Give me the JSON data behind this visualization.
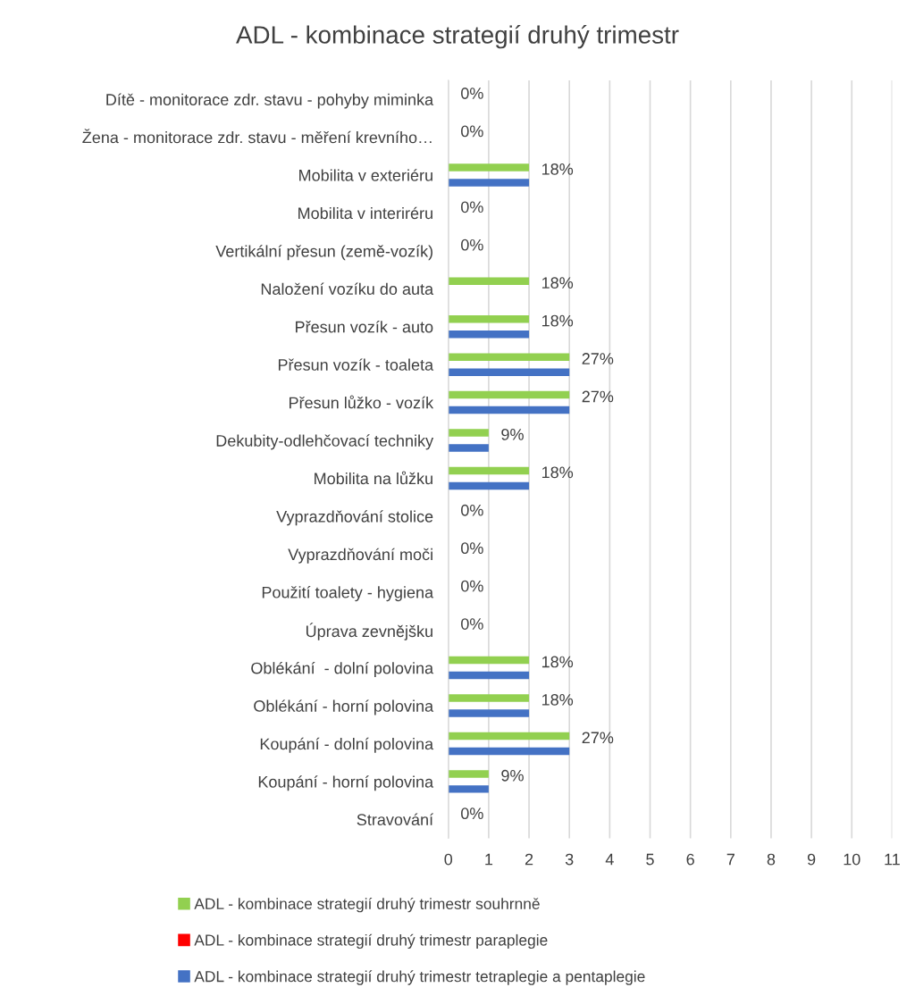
{
  "chart_data": {
    "type": "bar",
    "orientation": "horizontal",
    "title": "ADL - kombinace strategií druhý trimestr",
    "categories": [
      "Dítě - monitorace zdr. stavu - pohyby miminka",
      "Žena - monitorace zdr. stavu - měření krevního…",
      "Mobilita v exteriéru",
      "Mobilita v interiréru",
      "Vertikální přesun (země-vozík)",
      "Naložení vozíku do auta",
      "Přesun vozík - auto",
      "Přesun vozík - toaleta",
      "Přesun lůžko - vozík",
      "Dekubity-odlehčovací techniky",
      "Mobilita na lůžku",
      "Vyprazdňování stolice",
      "Vyprazdňování moči",
      "Použití toalety - hygiena",
      "Úprava zevnějšku",
      "Oblékání  - dolní polovina",
      "Oblékání - horní polovina",
      "Koupání - dolní polovina",
      "Koupání - horní polovina",
      "Stravování"
    ],
    "series": [
      {
        "name": "ADL - kombinace strategií druhý trimestr souhrnně",
        "color": "#92d050",
        "values": [
          0,
          0,
          2,
          0,
          0,
          2,
          2,
          3,
          3,
          1,
          2,
          0,
          0,
          0,
          0,
          2,
          2,
          3,
          1,
          0
        ]
      },
      {
        "name": "ADL - kombinace strategií druhý trimestr paraplegie",
        "color": "#ff0000",
        "values": [
          0,
          0,
          0,
          0,
          0,
          0,
          0,
          0,
          0,
          0,
          0,
          0,
          0,
          0,
          0,
          0,
          0,
          0,
          0,
          0
        ]
      },
      {
        "name": "ADL - kombinace strategií druhý trimestr tetraplegie a pentaplegie",
        "color": "#4472c4",
        "values": [
          0,
          0,
          2,
          0,
          0,
          0,
          2,
          3,
          3,
          1,
          2,
          0,
          0,
          0,
          0,
          2,
          2,
          3,
          1,
          0
        ]
      }
    ],
    "annotations": [
      {
        "text": "0%",
        "x": 0,
        "y": "Dítě - monitorace zdr. stavu - pohyby miminka"
      },
      {
        "text": "0%",
        "x": 0,
        "y": "Žena - monitorace zdr. stavu - měření krevního…"
      },
      {
        "text": "18%",
        "x": 2,
        "y": "Mobilita v exteriéru"
      },
      {
        "text": "0%",
        "x": 0,
        "y": "Mobilita v interiréru"
      },
      {
        "text": "0%",
        "x": 0,
        "y": "Vertikální přesun (země-vozík)"
      },
      {
        "text": "18%",
        "x": 2,
        "y": "Naložení vozíku do auta"
      },
      {
        "text": "18%",
        "x": 2,
        "y": "Přesun vozík - auto"
      },
      {
        "text": "27%",
        "x": 3,
        "y": "Přesun vozík - toaleta"
      },
      {
        "text": "27%",
        "x": 3,
        "y": "Přesun lůžko - vozík"
      },
      {
        "text": "9%",
        "x": 1,
        "y": "Dekubity-odlehčovací techniky"
      },
      {
        "text": "18%",
        "x": 2,
        "y": "Mobilita na lůžku"
      },
      {
        "text": "0%",
        "x": 0,
        "y": "Vyprazdňování stolice"
      },
      {
        "text": "0%",
        "x": 0,
        "y": "Vyprazdňování moči"
      },
      {
        "text": "0%",
        "x": 0,
        "y": "Použití toalety - hygiena"
      },
      {
        "text": "0%",
        "x": 0,
        "y": "Úprava zevnějšku"
      },
      {
        "text": "18%",
        "x": 2,
        "y": "Oblékání  - dolní polovina"
      },
      {
        "text": "18%",
        "x": 2,
        "y": "Oblékání - horní polovina"
      },
      {
        "text": "27%",
        "x": 3,
        "y": "Koupání - dolní polovina"
      },
      {
        "text": "9%",
        "x": 1,
        "y": "Koupání - horní polovina"
      },
      {
        "text": "0%",
        "x": 0,
        "y": "Stravování"
      }
    ],
    "xlim": [
      0,
      11
    ],
    "xticks": [
      0,
      1,
      2,
      3,
      4,
      5,
      6,
      7,
      8,
      9,
      10,
      11
    ],
    "grid": "x",
    "legend": "bottom"
  }
}
